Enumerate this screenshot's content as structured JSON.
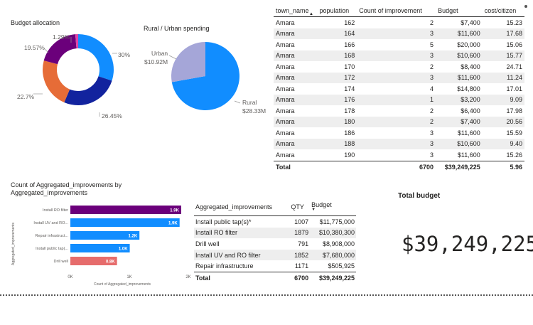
{
  "budget_allocation": {
    "title": "Budget allocation",
    "slices": [
      {
        "value": 30,
        "label": "30%",
        "color": "#118DFF"
      },
      {
        "value": 26.45,
        "label": "26.45%",
        "color": "#12239E"
      },
      {
        "value": 22.7,
        "label": "22.7%",
        "color": "#E66C37"
      },
      {
        "value": 19.57,
        "label": "19.57%",
        "color": "#6B007B"
      },
      {
        "value": 1.29,
        "label": "1.29%",
        "color": "#E044A7"
      }
    ]
  },
  "rural_urban": {
    "title": "Rural / Urban spending",
    "slices": [
      {
        "name": "Rural",
        "value_label": "$28.33M",
        "value": 28.33,
        "color": "#118DFF"
      },
      {
        "name": "Urban",
        "value_label": "$10.92M",
        "value": 10.92,
        "color": "#A5A6D8"
      }
    ]
  },
  "town_table": {
    "headers": [
      "town_name",
      "population",
      "Count of improvement",
      "Budget",
      "cost/citizen"
    ],
    "rows": [
      [
        "Amara",
        "162",
        "2",
        "$7,400",
        "15.23"
      ],
      [
        "Amara",
        "164",
        "3",
        "$11,600",
        "17.68"
      ],
      [
        "Amara",
        "166",
        "5",
        "$20,000",
        "15.06"
      ],
      [
        "Amara",
        "168",
        "3",
        "$10,600",
        "15.77"
      ],
      [
        "Amara",
        "170",
        "2",
        "$8,400",
        "24.71"
      ],
      [
        "Amara",
        "172",
        "3",
        "$11,600",
        "11.24"
      ],
      [
        "Amara",
        "174",
        "4",
        "$14,800",
        "17.01"
      ],
      [
        "Amara",
        "176",
        "1",
        "$3,200",
        "9.09"
      ],
      [
        "Amara",
        "178",
        "2",
        "$6,400",
        "17.98"
      ],
      [
        "Amara",
        "180",
        "2",
        "$7,400",
        "20.56"
      ],
      [
        "Amara",
        "186",
        "3",
        "$11,600",
        "15.59"
      ],
      [
        "Amara",
        "188",
        "3",
        "$10,600",
        "9.40"
      ],
      [
        "Amara",
        "190",
        "3",
        "$11,600",
        "15.26"
      ]
    ],
    "total": {
      "label": "Total",
      "count": "6700",
      "budget": "$39,249,225",
      "cost": "5.96"
    }
  },
  "bar_chart": {
    "title": "Count of Aggregated_improvements by Aggregated_improvements",
    "y_axis_title": "Aggregated_improvements",
    "x_axis_title": "Count of Aggregated_improvements",
    "x_ticks": [
      "0K",
      "1K",
      "2K"
    ],
    "xlim": [
      0,
      2000
    ],
    "bars": [
      {
        "category": "Install RO filter",
        "value": 1879,
        "label": "1.9K",
        "color": "#6B007B"
      },
      {
        "category": "Install UV and RO...",
        "value": 1852,
        "label": "1.9K",
        "color": "#118DFF"
      },
      {
        "category": "Repair infrastruct...",
        "value": 1171,
        "label": "1.2K",
        "color": "#118DFF"
      },
      {
        "category": "Install public tap(...",
        "value": 1007,
        "label": "1.0K",
        "color": "#118DFF"
      },
      {
        "category": "Drill well",
        "value": 791,
        "label": "0.8K",
        "color": "#E66C6C"
      }
    ]
  },
  "agg_table": {
    "headers": [
      "Aggregated_improvements",
      "QTY",
      "Budget"
    ],
    "rows": [
      [
        "Install public tap(s)*",
        "1007",
        "$11,775,000"
      ],
      [
        "Install RO filter",
        "1879",
        "$10,380,300"
      ],
      [
        "Drill well",
        "791",
        "$8,908,000"
      ],
      [
        "Install UV and RO filter",
        "1852",
        "$7,680,000"
      ],
      [
        "Repair infrastructure",
        "1171",
        "$505,925"
      ]
    ],
    "total": {
      "label": "Total",
      "qty": "6700",
      "budget": "$39,249,225"
    }
  },
  "total_budget": {
    "title": "Total budget",
    "value": "$39,249,225"
  }
}
